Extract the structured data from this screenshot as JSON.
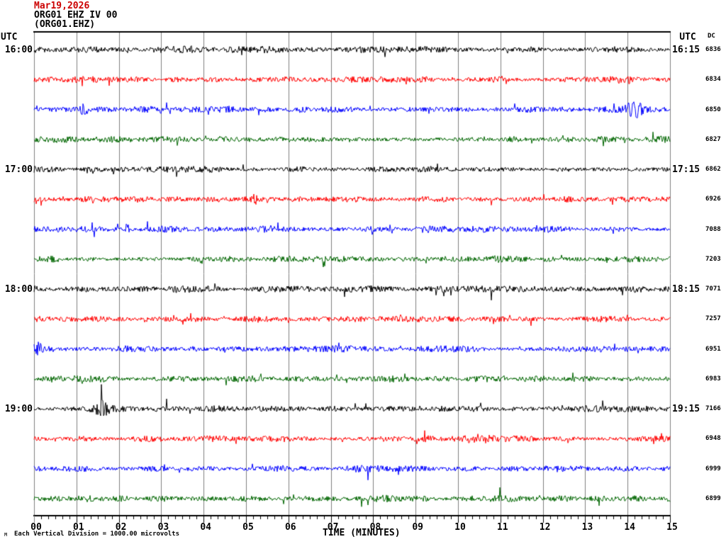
{
  "header": {
    "date_line": "Mar19,2026",
    "channel_line": "ORG01 EHZ IV 00",
    "station_line": "(ORG01.EHZ)"
  },
  "axis_labels": {
    "utc_left": "UTC",
    "utc_right": "UTC",
    "dc_header": "DC",
    "time_axis_title": "TIME (MINUTES)",
    "minute_ticks": [
      "00",
      "01",
      "02",
      "03",
      "04",
      "05",
      "06",
      "07",
      "08",
      "09",
      "10",
      "11",
      "12",
      "13",
      "14",
      "15"
    ]
  },
  "footer": {
    "corner_mark": "M",
    "scale_note": "Each Vertical Division = 1000.00 microvolts"
  },
  "colors": {
    "date_text": "#cc0000",
    "trace_black": "#000000",
    "trace_red": "#ff0000",
    "trace_blue": "#0000ff",
    "trace_green": "#006600",
    "grid": "#7f7f7f",
    "frame": "#000000"
  },
  "chart_data": {
    "type": "line",
    "subtype": "helicorder_seismogram",
    "title": "ORG01 EHZ IV 00 (ORG01.EHZ) Mar19,2026",
    "xlabel": "TIME (MINUTES)",
    "x_range_minutes": [
      0,
      15
    ],
    "minutes_per_row": 15,
    "minor_ticks_per_minute": 6,
    "vertical_division_microvolts": 1000.0,
    "trace_color_cycle": [
      "black",
      "red",
      "blue",
      "green"
    ],
    "rows": [
      {
        "left_label": "16:00",
        "right_label": "16:15",
        "dc": "6836",
        "color": "black",
        "events": []
      },
      {
        "dc": "6834",
        "color": "red",
        "events": [
          {
            "minute": 14.0,
            "gain": 1.7,
            "width": 0.4
          }
        ]
      },
      {
        "dc": "6850",
        "color": "blue",
        "events": [
          {
            "minute": 1.15,
            "gain": 1.8,
            "width": 0.2
          },
          {
            "minute": 14.2,
            "gain": 2.6,
            "width": 0.5
          }
        ]
      },
      {
        "dc": "6827",
        "color": "green",
        "events": []
      },
      {
        "left_label": "17:00",
        "right_label": "17:15",
        "dc": "6862",
        "color": "black",
        "events": [
          {
            "minute": 9.55,
            "gain": 2.4,
            "width": 0.15
          }
        ]
      },
      {
        "dc": "6926",
        "color": "red",
        "events": [
          {
            "minute": 5.2,
            "gain": 3.0,
            "width": 0.1
          }
        ]
      },
      {
        "dc": "7088",
        "color": "blue",
        "events": [
          {
            "minute": 2.2,
            "gain": 3.0,
            "width": 0.12
          }
        ]
      },
      {
        "dc": "7203",
        "color": "green",
        "events": []
      },
      {
        "left_label": "18:00",
        "right_label": "18:15",
        "dc": "7071",
        "color": "black",
        "events": []
      },
      {
        "dc": "7257",
        "color": "red",
        "events": []
      },
      {
        "dc": "6951",
        "color": "blue",
        "events": [
          {
            "minute": 0.08,
            "gain": 4.5,
            "width": 0.3
          },
          {
            "minute": 14.0,
            "gain": 1.8,
            "width": 0.15
          }
        ]
      },
      {
        "dc": "6983",
        "color": "green",
        "events": []
      },
      {
        "left_label": "19:00",
        "right_label": "19:15",
        "dc": "7166",
        "color": "black",
        "events": [
          {
            "minute": 1.62,
            "gain": 3.2,
            "width": 0.3
          }
        ]
      },
      {
        "dc": "6948",
        "color": "red",
        "events": [
          {
            "minute": 10.45,
            "gain": 2.6,
            "width": 0.5
          }
        ]
      },
      {
        "dc": "6999",
        "color": "blue",
        "events": []
      },
      {
        "dc": "6899",
        "color": "green",
        "events": []
      }
    ]
  }
}
